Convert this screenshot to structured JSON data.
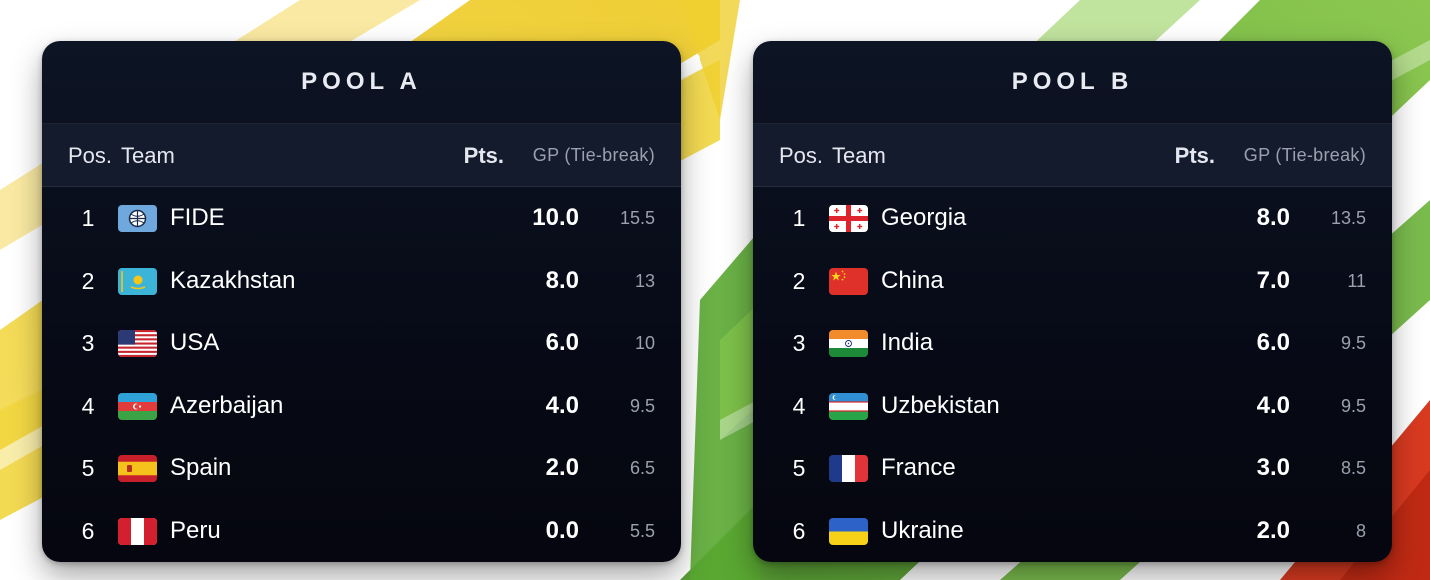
{
  "pools": [
    {
      "title": "POOL A",
      "headers": {
        "pos": "Pos.",
        "team": "Team",
        "pts": "Pts.",
        "gp": "GP (Tie-break)"
      },
      "rows": [
        {
          "pos": "1",
          "team": "FIDE",
          "pts": "10.0",
          "gp": "15.5",
          "flag": "fide"
        },
        {
          "pos": "2",
          "team": "Kazakhstan",
          "pts": "8.0",
          "gp": "13",
          "flag": "kazakhstan"
        },
        {
          "pos": "3",
          "team": "USA",
          "pts": "6.0",
          "gp": "10",
          "flag": "usa"
        },
        {
          "pos": "4",
          "team": "Azerbaijan",
          "pts": "4.0",
          "gp": "9.5",
          "flag": "azerbaijan"
        },
        {
          "pos": "5",
          "team": "Spain",
          "pts": "2.0",
          "gp": "6.5",
          "flag": "spain"
        },
        {
          "pos": "6",
          "team": "Peru",
          "pts": "0.0",
          "gp": "5.5",
          "flag": "peru"
        }
      ]
    },
    {
      "title": "POOL B",
      "headers": {
        "pos": "Pos.",
        "team": "Team",
        "pts": "Pts.",
        "gp": "GP (Tie-break)"
      },
      "rows": [
        {
          "pos": "1",
          "team": "Georgia",
          "pts": "8.0",
          "gp": "13.5",
          "flag": "georgia"
        },
        {
          "pos": "2",
          "team": "China",
          "pts": "7.0",
          "gp": "11",
          "flag": "china"
        },
        {
          "pos": "3",
          "team": "India",
          "pts": "6.0",
          "gp": "9.5",
          "flag": "india"
        },
        {
          "pos": "4",
          "team": "Uzbekistan",
          "pts": "4.0",
          "gp": "9.5",
          "flag": "uzbekistan"
        },
        {
          "pos": "5",
          "team": "France",
          "pts": "3.0",
          "gp": "8.5",
          "flag": "france"
        },
        {
          "pos": "6",
          "team": "Ukraine",
          "pts": "2.0",
          "gp": "8",
          "flag": "ukraine"
        }
      ]
    }
  ],
  "colors": {
    "panel_bg": "#070a16",
    "header_row_bg": "#141b2c",
    "muted_text": "#9aa0ad",
    "stripe_yellow": "#f1d33c",
    "stripe_green": "#6bb33a",
    "stripe_red": "#d83a20"
  }
}
